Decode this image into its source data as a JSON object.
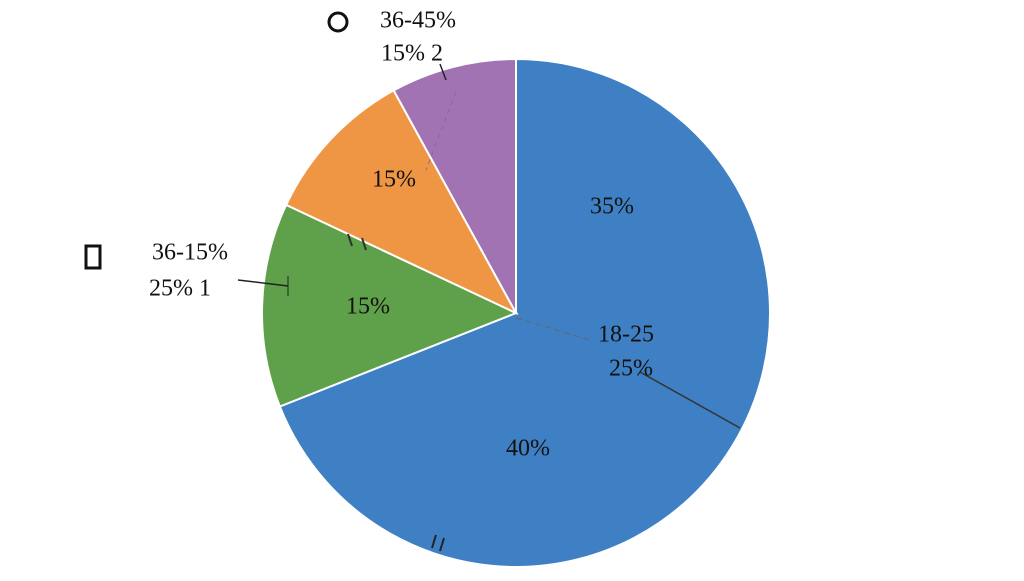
{
  "chart_data": {
    "type": "pie",
    "categories": [
      "18-25",
      "36-15%",
      null,
      "36-45%"
    ],
    "values": [
      69,
      13,
      10,
      8
    ],
    "colors": [
      "#3f80c4",
      "#5fa04a",
      "#ef9644",
      "#a173b3"
    ],
    "annotations": [
      "35%",
      "40%",
      "25%",
      "15%",
      "15%",
      "15% 2",
      "25% 1"
    ]
  }
}
